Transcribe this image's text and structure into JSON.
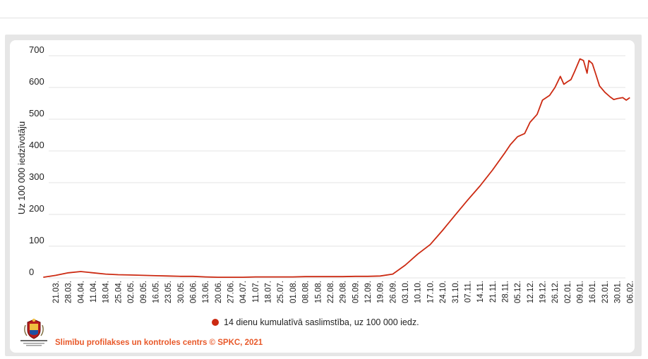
{
  "colors": {
    "series": "#cc2a12",
    "credit": "#e8592a",
    "grid": "#e3e3e3"
  },
  "logo": {
    "icon": "latvia-coat-of-arms-icon",
    "caption": "Slimību profilakses un kontroles centrs"
  },
  "credit": "Slimību profilakses un kontroles centrs © SPKC, 2021",
  "chart_data": {
    "type": "line",
    "title": "",
    "xlabel": "",
    "ylabel": "Uz 100 000 iedzīvotāju",
    "ylim": [
      0,
      700
    ],
    "yticks": [
      0,
      100,
      200,
      300,
      400,
      500,
      600,
      700
    ],
    "grid": true,
    "legend_position": "bottom-center",
    "x_tick_labels": [
      "21.03.",
      "28.03.",
      "04.04.",
      "11.04.",
      "18.04.",
      "25.04.",
      "02.05.",
      "09.05.",
      "16.05.",
      "23.05.",
      "30.05.",
      "06.06.",
      "13.06.",
      "20.06.",
      "27.06.",
      "04.07.",
      "11.07.",
      "18.07.",
      "25.07.",
      "01.08.",
      "08.08.",
      "15.08.",
      "22.08.",
      "29.08.",
      "05.09.",
      "12.09.",
      "19.09.",
      "26.09.",
      "03.10.",
      "10.10.",
      "17.10.",
      "24.10.",
      "31.10.",
      "07.11.",
      "14.11.",
      "21.11.",
      "28.11.",
      "05.12.",
      "12.12.",
      "19.12.",
      "26.12.",
      "02.01.",
      "09.01.",
      "16.01.",
      "23.01.",
      "30.01.",
      "06.02."
    ],
    "series": [
      {
        "name": "14 dienu kumulatīvā saslimstība, uz 100 000 iedz.",
        "x": [
          "14.03.",
          "21.03.",
          "28.03.",
          "04.04.",
          "11.04.",
          "18.04.",
          "25.04.",
          "02.05.",
          "09.05.",
          "16.05.",
          "23.05.",
          "30.05.",
          "06.06.",
          "13.06.",
          "20.06.",
          "27.06.",
          "04.07.",
          "11.07.",
          "18.07.",
          "25.07.",
          "01.08.",
          "08.08.",
          "15.08.",
          "22.08.",
          "29.08.",
          "05.09.",
          "12.09.",
          "19.09.",
          "26.09.",
          "03.10.",
          "10.10.",
          "17.10.",
          "24.10.",
          "31.10.",
          "07.11.",
          "14.11.",
          "21.11.",
          "28.11.",
          "01.12.",
          "05.12.",
          "09.12.",
          "12.12.",
          "16.12.",
          "19.12.",
          "23.12.",
          "26.12.",
          "29.12.",
          "31.12.",
          "02.01.",
          "04.01.",
          "06.01.",
          "09.01.",
          "11.01.",
          "13.01.",
          "14.01.",
          "16.01.",
          "18.01.",
          "20.01.",
          "23.01.",
          "26.01.",
          "28.01.",
          "30.01.",
          "02.02.",
          "04.02.",
          "06.02."
        ],
        "values": [
          2,
          8,
          16,
          20,
          16,
          12,
          10,
          9,
          8,
          7,
          6,
          5,
          5,
          3,
          2,
          2,
          2,
          3,
          3,
          3,
          3,
          4,
          4,
          4,
          4,
          5,
          5,
          6,
          12,
          40,
          75,
          105,
          150,
          198,
          245,
          290,
          340,
          395,
          420,
          445,
          455,
          490,
          515,
          560,
          575,
          600,
          635,
          610,
          618,
          625,
          650,
          690,
          685,
          645,
          685,
          675,
          640,
          605,
          585,
          570,
          562,
          565,
          568,
          560,
          568
        ]
      }
    ]
  }
}
